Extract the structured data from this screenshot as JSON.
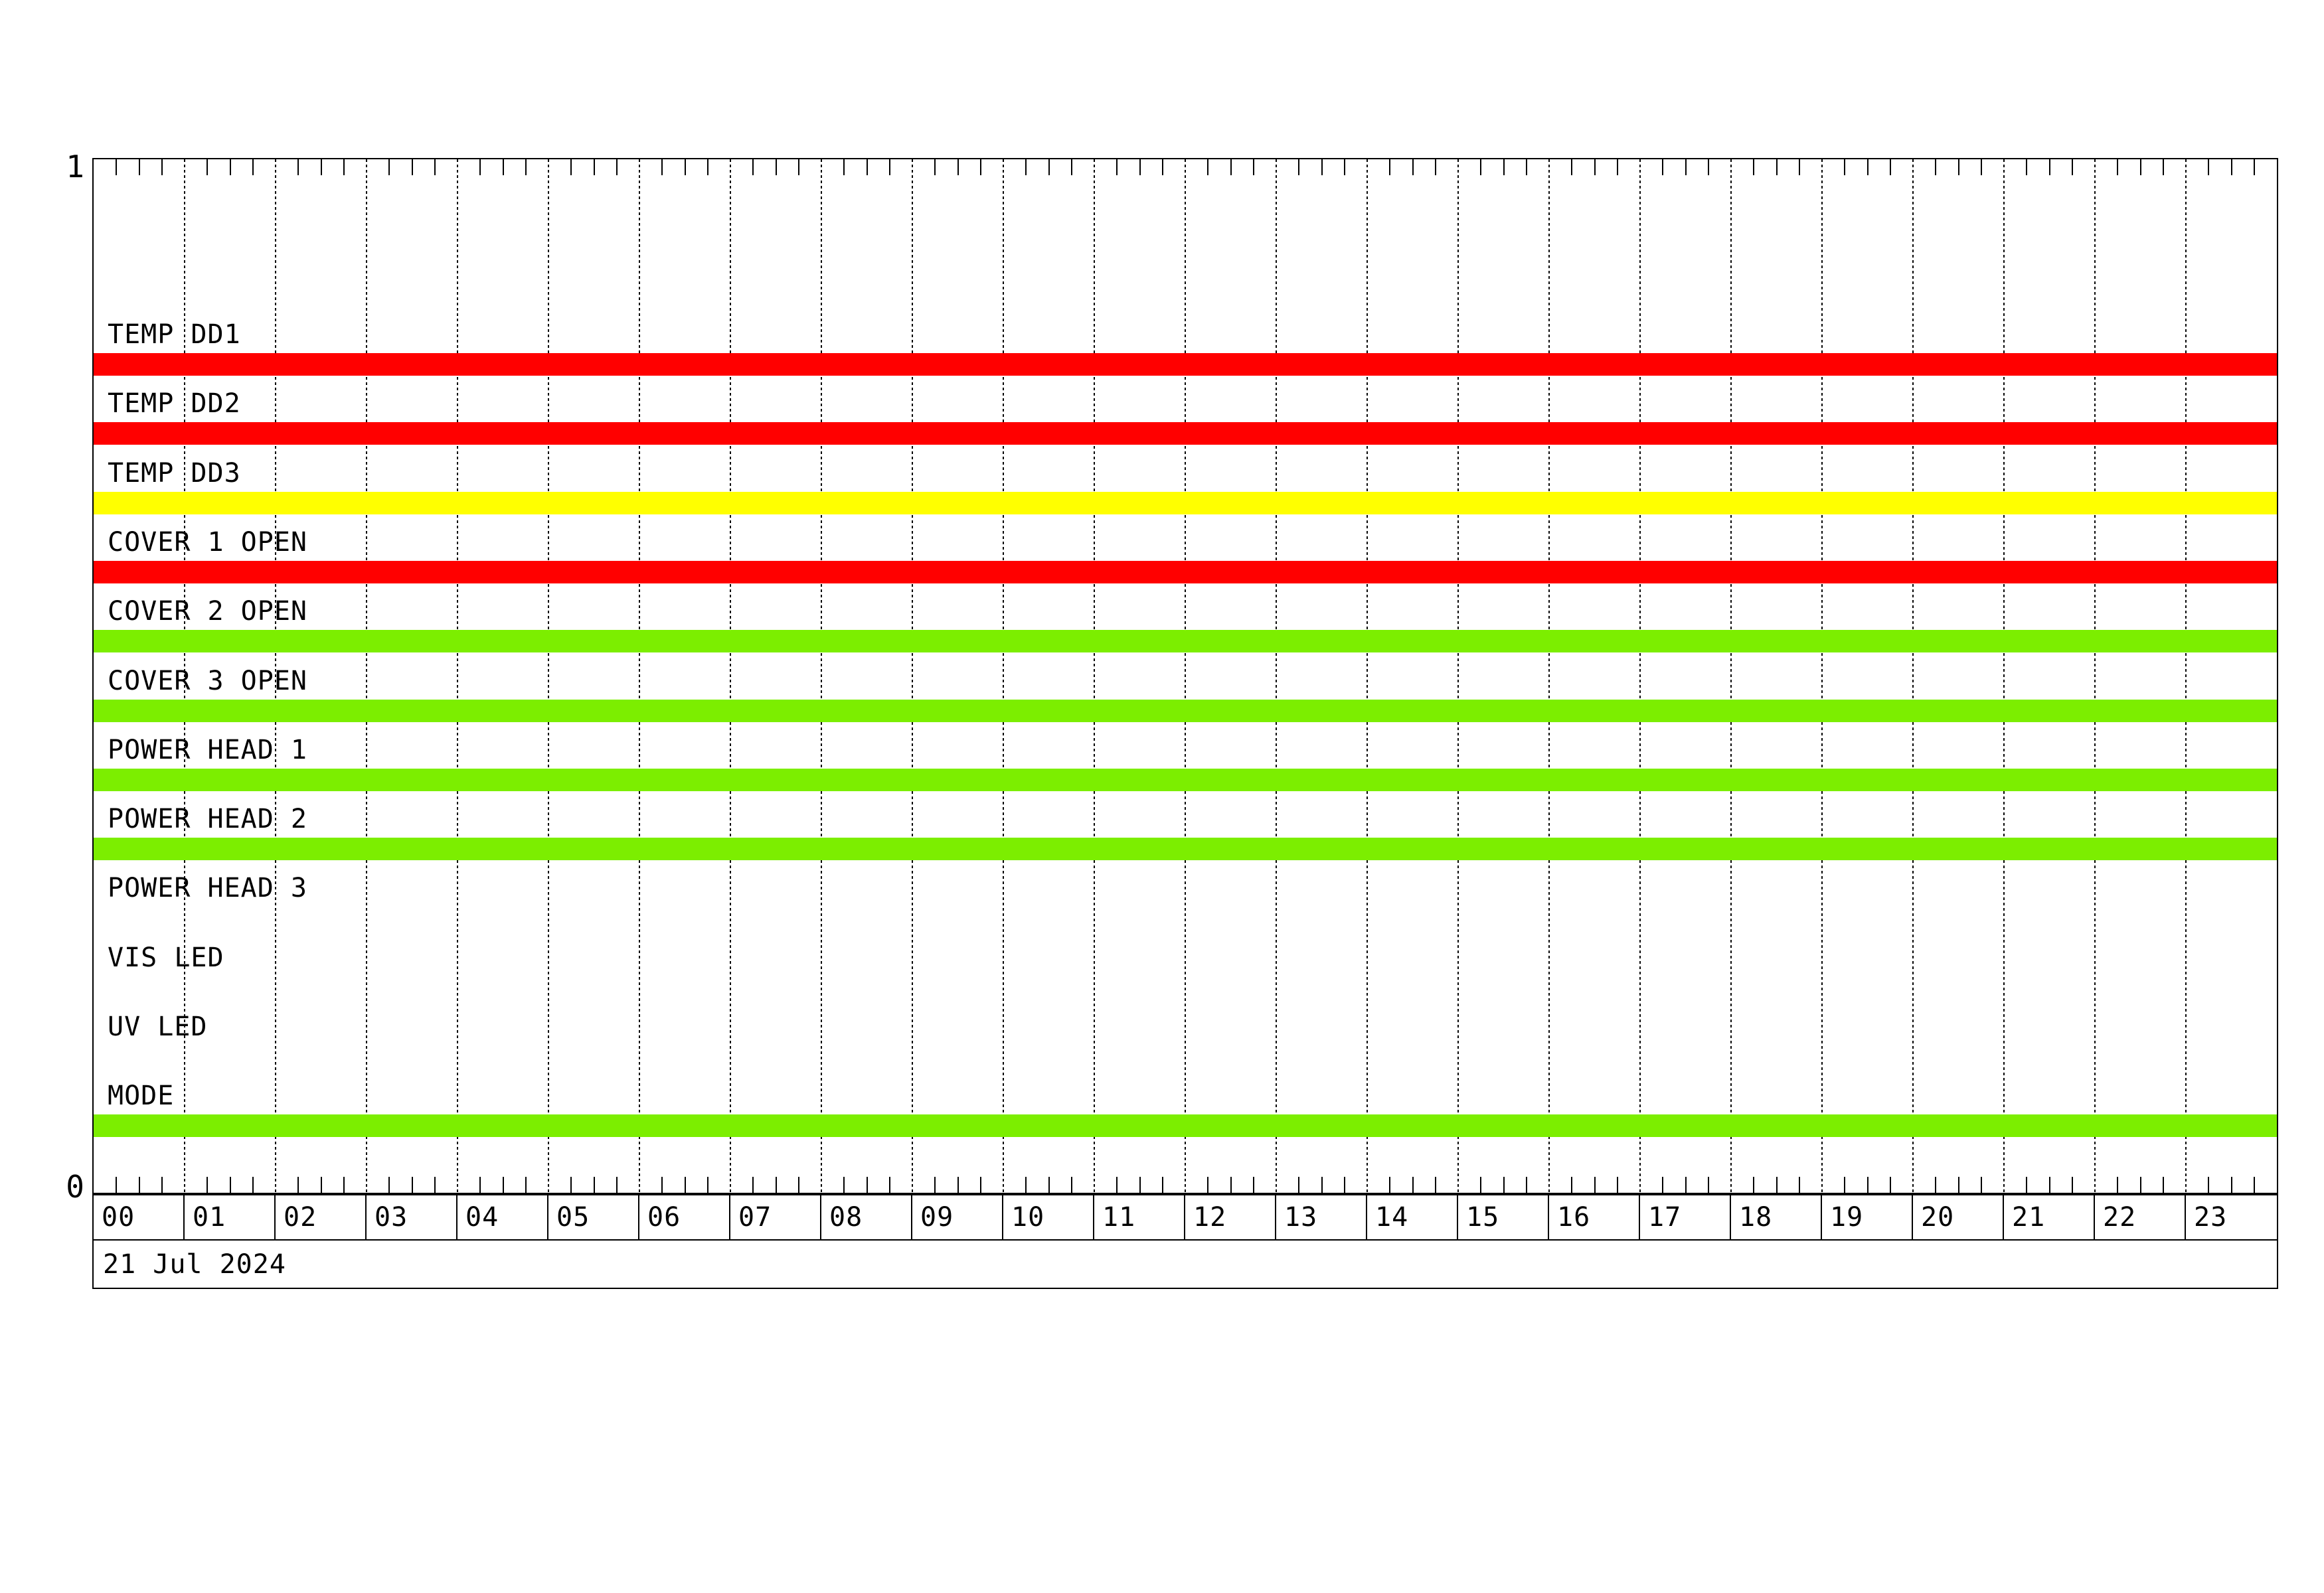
{
  "page": {
    "background": "#ffffff",
    "description": "Daily housekeeping status timeline plot"
  },
  "chart_data": {
    "type": "bar",
    "variant": "status-timeline-gantt",
    "title": "",
    "date_label": "21 Jul 2024",
    "y_axis": {
      "top_label": "1",
      "bottom_label": "0",
      "ylim": [
        0,
        1
      ]
    },
    "x_axis": {
      "hour_labels": [
        "00",
        "01",
        "02",
        "03",
        "04",
        "05",
        "06",
        "07",
        "08",
        "09",
        "10",
        "11",
        "12",
        "13",
        "14",
        "15",
        "16",
        "17",
        "18",
        "19",
        "20",
        "21",
        "22",
        "23"
      ],
      "xlim_hours": [
        0,
        24
      ],
      "minor_tick_minutes": 15,
      "grid": "hourly-dashed",
      "legend": "none"
    },
    "palette": {
      "red": "#ff0000",
      "yellow": "#ffff00",
      "green": "#7cee00"
    },
    "rows": [
      {
        "label": "TEMP DD1",
        "state": "on",
        "color": "red",
        "segments_hours": [
          [
            0,
            24
          ]
        ]
      },
      {
        "label": "TEMP DD2",
        "state": "on",
        "color": "red",
        "segments_hours": [
          [
            0,
            24
          ]
        ]
      },
      {
        "label": "TEMP DD3",
        "state": "on",
        "color": "yellow",
        "segments_hours": [
          [
            0,
            24
          ]
        ]
      },
      {
        "label": "COVER 1 OPEN",
        "state": "on",
        "color": "red",
        "segments_hours": [
          [
            0,
            24
          ]
        ]
      },
      {
        "label": "COVER 2 OPEN",
        "state": "on",
        "color": "green",
        "segments_hours": [
          [
            0,
            24
          ]
        ]
      },
      {
        "label": "COVER 3 OPEN",
        "state": "on",
        "color": "green",
        "segments_hours": [
          [
            0,
            24
          ]
        ]
      },
      {
        "label": "POWER HEAD 1",
        "state": "on",
        "color": "green",
        "segments_hours": [
          [
            0,
            24
          ]
        ]
      },
      {
        "label": "POWER HEAD 2",
        "state": "on",
        "color": "green",
        "segments_hours": [
          [
            0,
            24
          ]
        ]
      },
      {
        "label": "POWER HEAD 3",
        "state": "off",
        "color": null,
        "segments_hours": []
      },
      {
        "label": "VIS LED",
        "state": "off",
        "color": null,
        "segments_hours": []
      },
      {
        "label": "UV LED",
        "state": "off",
        "color": null,
        "segments_hours": []
      },
      {
        "label": "MODE",
        "state": "on",
        "color": "green",
        "segments_hours": [
          [
            0,
            24
          ]
        ]
      }
    ]
  }
}
